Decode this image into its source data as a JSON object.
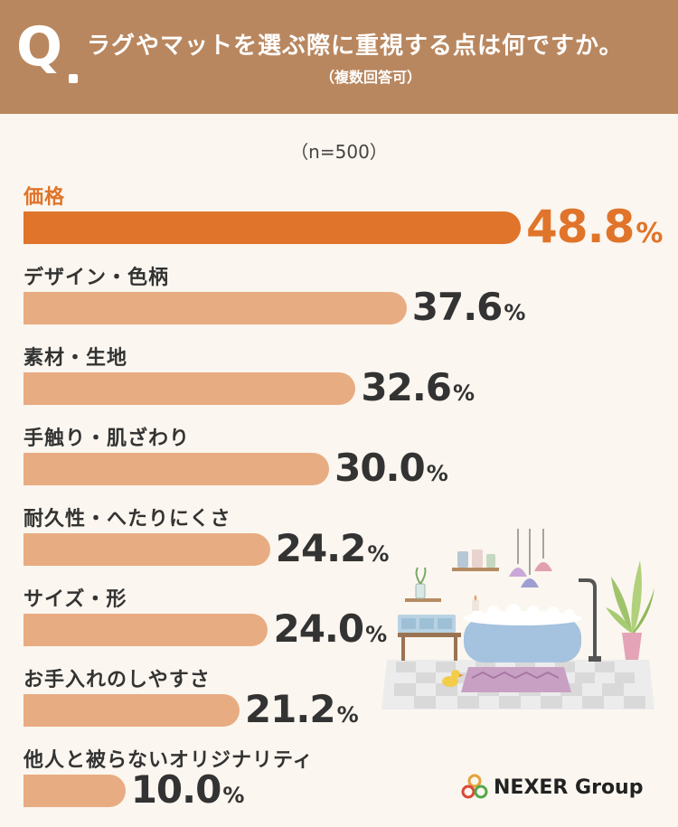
{
  "header": {
    "q_mark": "Q",
    "question": "ラグやマットを選ぶ際に重視する点は何ですか。",
    "subtitle": "（複数回答可）"
  },
  "sample": "（n=500）",
  "percent_sign": "%",
  "chart_data": {
    "type": "bar",
    "orientation": "horizontal",
    "title": "ラグやマットを選ぶ際に重視する点は何ですか。",
    "subtitle": "（複数回答可）",
    "categories": [
      "価格",
      "デザイン・色柄",
      "素材・生地",
      "手触り・肌ざわり",
      "耐久性・へたりにくさ",
      "サイズ・形",
      "お手入れのしやすさ",
      "他人と被らないオリジナリティ"
    ],
    "values": [
      48.8,
      37.6,
      32.6,
      30.0,
      24.2,
      24.0,
      21.2,
      10.0
    ],
    "value_labels": [
      "48.8",
      "37.6",
      "32.6",
      "30.0",
      "24.2",
      "24.0",
      "21.2",
      "10.0"
    ],
    "unit": "%",
    "highlight_index": 0,
    "colors": {
      "highlight": "#e0742a",
      "default": "#e8ac82"
    },
    "grid": false,
    "legend": "none"
  },
  "colors": {
    "header_bg": "#b9875f",
    "page_bg": "#fbf6ef"
  },
  "logo": {
    "text": "NEXER Group"
  }
}
